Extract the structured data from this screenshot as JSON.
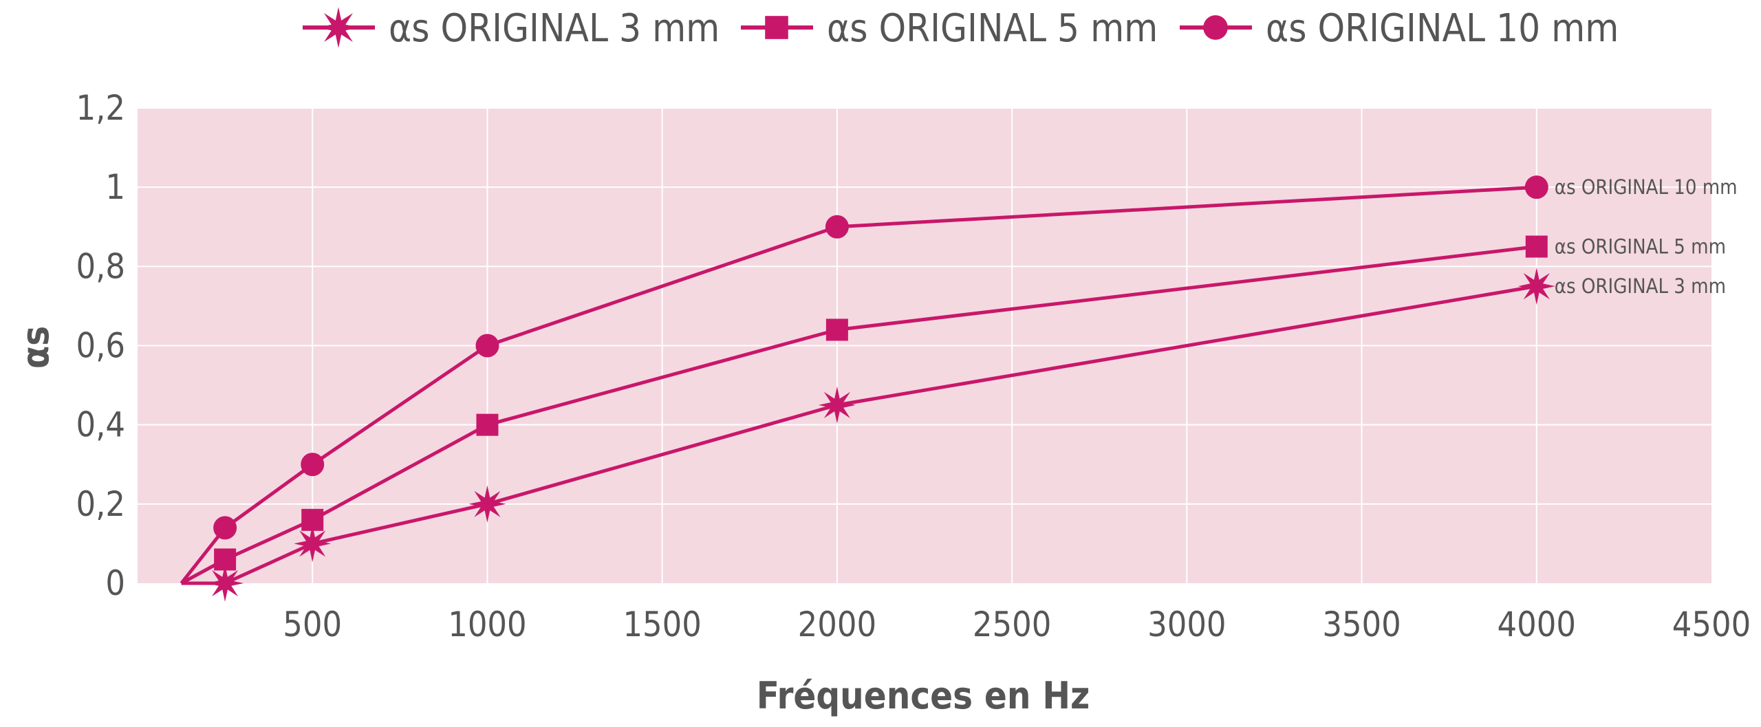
{
  "chart_data": {
    "type": "line",
    "title": "",
    "xlabel": "Fréquences en Hz",
    "ylabel": "αs",
    "xlim": [
      0,
      4500
    ],
    "ylim": [
      0,
      1.2
    ],
    "x_ticks": [
      "500",
      "1000",
      "1500",
      "2000",
      "2500",
      "3000",
      "3500",
      "4000",
      "4500"
    ],
    "y_ticks": [
      "0",
      "0,2",
      "0,4",
      "0,6",
      "0,8",
      "1",
      "1,2"
    ],
    "grid": true,
    "legend_position": "top",
    "background_color": "#f4d9e1",
    "line_color": "#c8176a",
    "origin_point": [
      125,
      0
    ],
    "series": [
      {
        "name": "αs ORIGINAL 3 mm",
        "end_label": "αs ORIGINAL 3 mm",
        "marker": "star",
        "x": [
          250,
          500,
          1000,
          2000,
          4000
        ],
        "y": [
          0.0,
          0.1,
          0.2,
          0.45,
          0.75
        ]
      },
      {
        "name": "αs ORIGINAL 5 mm",
        "end_label": "αs ORIGINAL 5 mm",
        "marker": "square",
        "x": [
          250,
          500,
          1000,
          2000,
          4000
        ],
        "y": [
          0.06,
          0.16,
          0.4,
          0.64,
          0.85
        ]
      },
      {
        "name": "αs ORIGINAL 10 mm",
        "end_label": "αs ORIGINAL 10 mm",
        "marker": "circle",
        "x": [
          250,
          500,
          1000,
          2000,
          4000
        ],
        "y": [
          0.14,
          0.3,
          0.6,
          0.9,
          1.0
        ]
      }
    ]
  }
}
